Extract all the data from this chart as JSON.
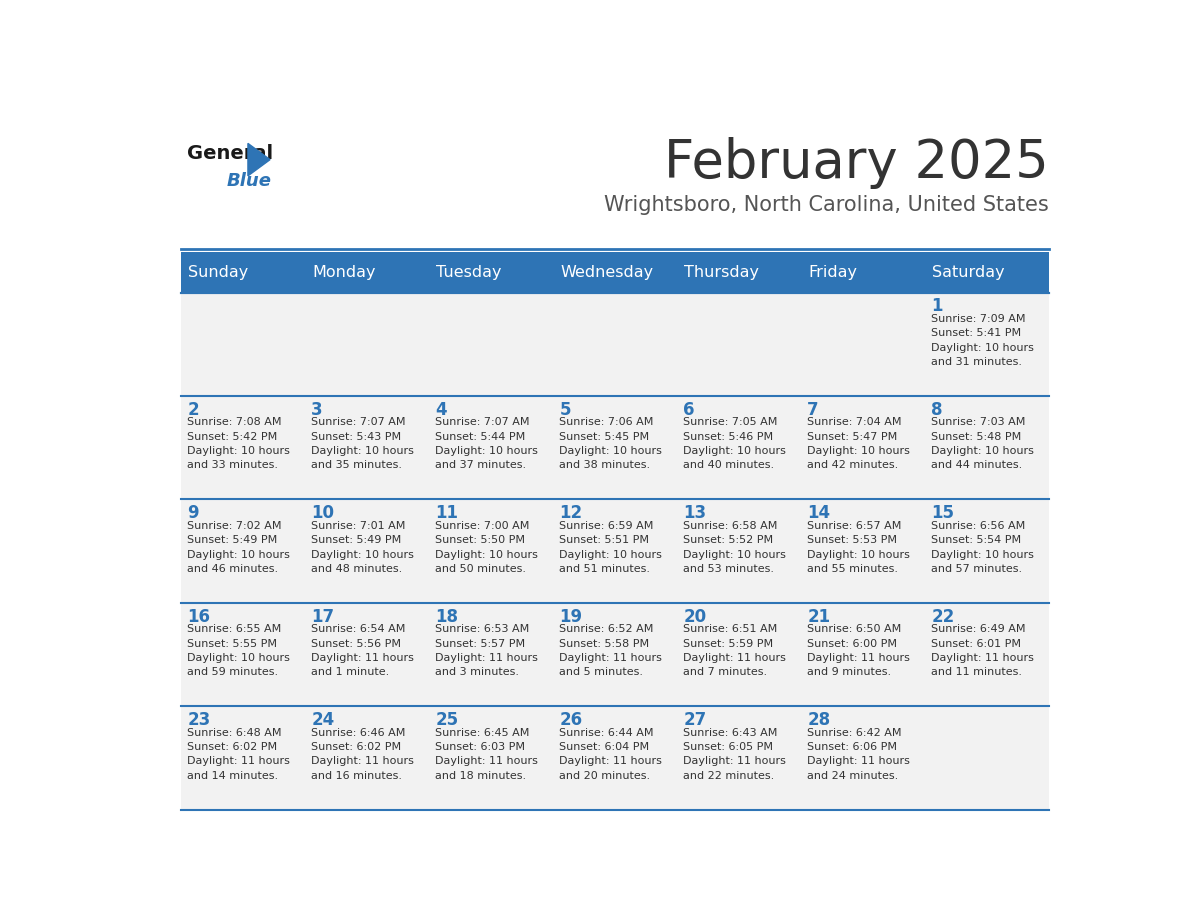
{
  "title": "February 2025",
  "subtitle": "Wrightsboro, North Carolina, United States",
  "days_of_week": [
    "Sunday",
    "Monday",
    "Tuesday",
    "Wednesday",
    "Thursday",
    "Friday",
    "Saturday"
  ],
  "header_bg": "#2E74B5",
  "header_text": "#FFFFFF",
  "row_bg": "#F2F2F2",
  "day_number_color": "#2E74B5",
  "text_color": "#333333",
  "border_color": "#2E74B5",
  "title_color": "#333333",
  "subtitle_color": "#555555",
  "logo_general_color": "#1A1A1A",
  "logo_blue_color": "#2E74B5",
  "calendar_data": [
    [
      {
        "day": null,
        "info": null
      },
      {
        "day": null,
        "info": null
      },
      {
        "day": null,
        "info": null
      },
      {
        "day": null,
        "info": null
      },
      {
        "day": null,
        "info": null
      },
      {
        "day": null,
        "info": null
      },
      {
        "day": 1,
        "info": "Sunrise: 7:09 AM\nSunset: 5:41 PM\nDaylight: 10 hours\nand 31 minutes."
      }
    ],
    [
      {
        "day": 2,
        "info": "Sunrise: 7:08 AM\nSunset: 5:42 PM\nDaylight: 10 hours\nand 33 minutes."
      },
      {
        "day": 3,
        "info": "Sunrise: 7:07 AM\nSunset: 5:43 PM\nDaylight: 10 hours\nand 35 minutes."
      },
      {
        "day": 4,
        "info": "Sunrise: 7:07 AM\nSunset: 5:44 PM\nDaylight: 10 hours\nand 37 minutes."
      },
      {
        "day": 5,
        "info": "Sunrise: 7:06 AM\nSunset: 5:45 PM\nDaylight: 10 hours\nand 38 minutes."
      },
      {
        "day": 6,
        "info": "Sunrise: 7:05 AM\nSunset: 5:46 PM\nDaylight: 10 hours\nand 40 minutes."
      },
      {
        "day": 7,
        "info": "Sunrise: 7:04 AM\nSunset: 5:47 PM\nDaylight: 10 hours\nand 42 minutes."
      },
      {
        "day": 8,
        "info": "Sunrise: 7:03 AM\nSunset: 5:48 PM\nDaylight: 10 hours\nand 44 minutes."
      }
    ],
    [
      {
        "day": 9,
        "info": "Sunrise: 7:02 AM\nSunset: 5:49 PM\nDaylight: 10 hours\nand 46 minutes."
      },
      {
        "day": 10,
        "info": "Sunrise: 7:01 AM\nSunset: 5:49 PM\nDaylight: 10 hours\nand 48 minutes."
      },
      {
        "day": 11,
        "info": "Sunrise: 7:00 AM\nSunset: 5:50 PM\nDaylight: 10 hours\nand 50 minutes."
      },
      {
        "day": 12,
        "info": "Sunrise: 6:59 AM\nSunset: 5:51 PM\nDaylight: 10 hours\nand 51 minutes."
      },
      {
        "day": 13,
        "info": "Sunrise: 6:58 AM\nSunset: 5:52 PM\nDaylight: 10 hours\nand 53 minutes."
      },
      {
        "day": 14,
        "info": "Sunrise: 6:57 AM\nSunset: 5:53 PM\nDaylight: 10 hours\nand 55 minutes."
      },
      {
        "day": 15,
        "info": "Sunrise: 6:56 AM\nSunset: 5:54 PM\nDaylight: 10 hours\nand 57 minutes."
      }
    ],
    [
      {
        "day": 16,
        "info": "Sunrise: 6:55 AM\nSunset: 5:55 PM\nDaylight: 10 hours\nand 59 minutes."
      },
      {
        "day": 17,
        "info": "Sunrise: 6:54 AM\nSunset: 5:56 PM\nDaylight: 11 hours\nand 1 minute."
      },
      {
        "day": 18,
        "info": "Sunrise: 6:53 AM\nSunset: 5:57 PM\nDaylight: 11 hours\nand 3 minutes."
      },
      {
        "day": 19,
        "info": "Sunrise: 6:52 AM\nSunset: 5:58 PM\nDaylight: 11 hours\nand 5 minutes."
      },
      {
        "day": 20,
        "info": "Sunrise: 6:51 AM\nSunset: 5:59 PM\nDaylight: 11 hours\nand 7 minutes."
      },
      {
        "day": 21,
        "info": "Sunrise: 6:50 AM\nSunset: 6:00 PM\nDaylight: 11 hours\nand 9 minutes."
      },
      {
        "day": 22,
        "info": "Sunrise: 6:49 AM\nSunset: 6:01 PM\nDaylight: 11 hours\nand 11 minutes."
      }
    ],
    [
      {
        "day": 23,
        "info": "Sunrise: 6:48 AM\nSunset: 6:02 PM\nDaylight: 11 hours\nand 14 minutes."
      },
      {
        "day": 24,
        "info": "Sunrise: 6:46 AM\nSunset: 6:02 PM\nDaylight: 11 hours\nand 16 minutes."
      },
      {
        "day": 25,
        "info": "Sunrise: 6:45 AM\nSunset: 6:03 PM\nDaylight: 11 hours\nand 18 minutes."
      },
      {
        "day": 26,
        "info": "Sunrise: 6:44 AM\nSunset: 6:04 PM\nDaylight: 11 hours\nand 20 minutes."
      },
      {
        "day": 27,
        "info": "Sunrise: 6:43 AM\nSunset: 6:05 PM\nDaylight: 11 hours\nand 22 minutes."
      },
      {
        "day": 28,
        "info": "Sunrise: 6:42 AM\nSunset: 6:06 PM\nDaylight: 11 hours\nand 24 minutes."
      },
      {
        "day": null,
        "info": null
      }
    ]
  ]
}
